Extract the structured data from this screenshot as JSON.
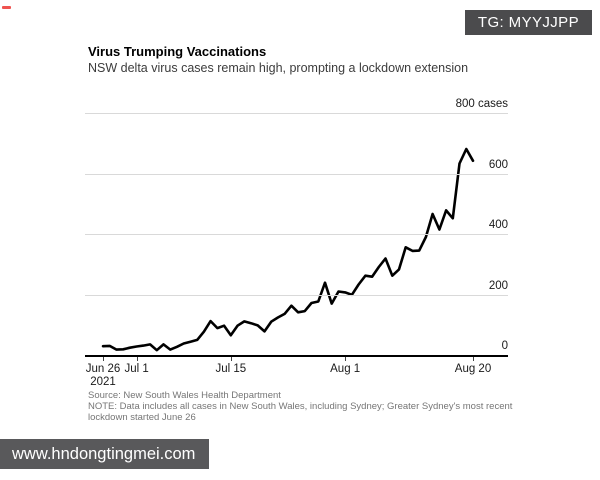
{
  "badge": {
    "label": "TG: MYYJJPP"
  },
  "watermark": {
    "label": "www.hndongtingmei.com"
  },
  "chart_data": {
    "type": "line",
    "title": "Virus Trumping Vaccinations",
    "subtitle": "NSW delta virus cases remain high, prompting a lockdown extension",
    "series_name": "NSW delta virus cases",
    "unit": "cases",
    "x_start": "Jun 26, 2021",
    "x_end": "Aug 20, 2021",
    "frequency": "daily",
    "ylim": [
      0,
      800
    ],
    "grid": true,
    "line_color": "#000000",
    "grid_color": "#d9d9d9",
    "y_ticks": [
      {
        "label": "800 cases",
        "value": 800
      },
      {
        "label": "600",
        "value": 600
      },
      {
        "label": "400",
        "value": 400
      },
      {
        "label": "200",
        "value": 200
      },
      {
        "label": "0",
        "value": 0
      }
    ],
    "x_ticks": [
      {
        "label": "Jun 26",
        "sublabel": "2021",
        "day": 0
      },
      {
        "label": "Jul 1",
        "day": 5
      },
      {
        "label": "Jul 15",
        "day": 19
      },
      {
        "label": "Aug 1",
        "day": 36
      },
      {
        "label": "Aug 20",
        "day": 55
      }
    ],
    "values": [
      29,
      30,
      18,
      19,
      24,
      28,
      31,
      35,
      16,
      35,
      18,
      27,
      38,
      44,
      50,
      77,
      112,
      89,
      97,
      65,
      97,
      111,
      105,
      98,
      78,
      110,
      124,
      136,
      163,
      141,
      145,
      172,
      177,
      239,
      170,
      210,
      207,
      199,
      233,
      262,
      259,
      291,
      319,
      262,
      283,
      356,
      344,
      345,
      390,
      466,
      415,
      478,
      452,
      633,
      681,
      642
    ],
    "source": "Source: New South Wales Health Department",
    "note_lines": [
      "NOTE: Data includes all cases in New South Wales, including Sydney; Greater Sydney's most recent",
      "lockdown started June 26"
    ]
  }
}
